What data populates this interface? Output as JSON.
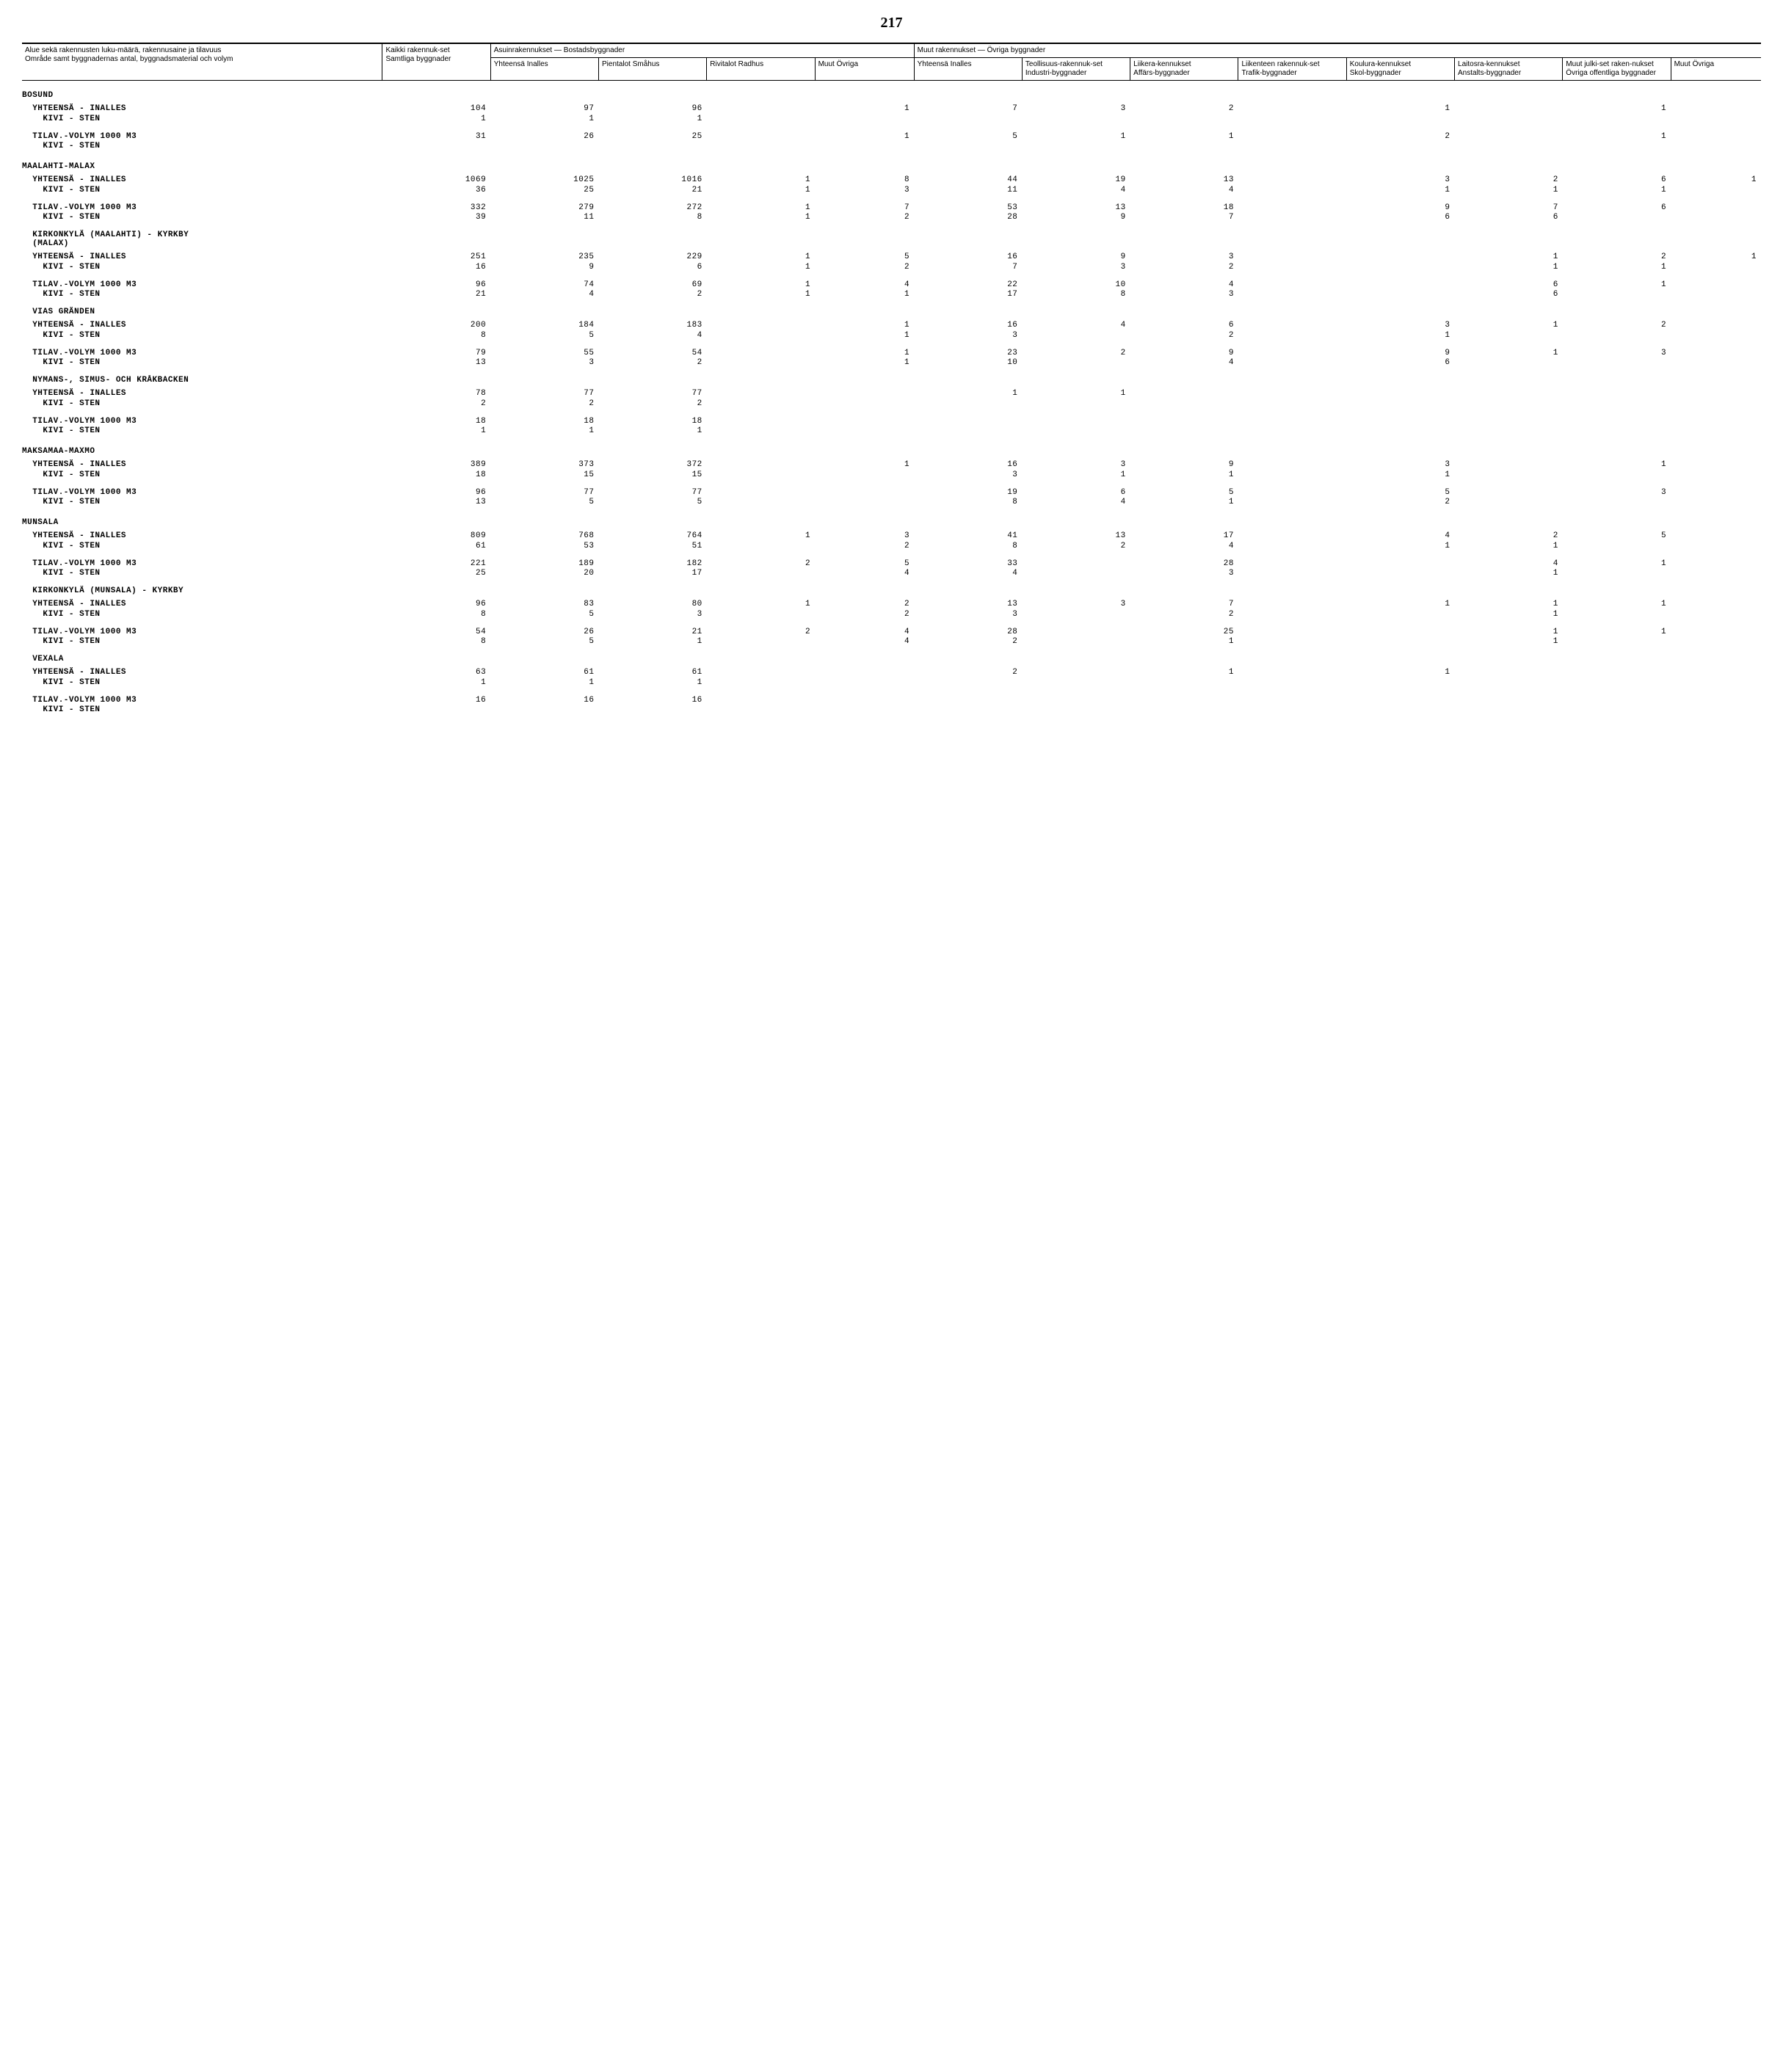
{
  "page_number": "217",
  "headers": {
    "area": "Alue sekä rakennusten luku-määrä, rakennusaine ja tilavuus\nOmråde samt byggnadernas antal, byggnadsmaterial och volym",
    "all": "Kaikki rakennuk-set\nSamtliga byggnader",
    "res_group": "Asuinrakennukset — Bostadsbyggnader",
    "res_total": "Yhteensä Inalles",
    "res_small": "Pientalot Småhus",
    "res_row": "Rivitalot Radhus",
    "res_other": "Muut Övriga",
    "oth_group": "Muut rakennukset — Övriga byggnader",
    "oth_total": "Yhteensä Inalles",
    "oth_ind": "Teollisuus-rakennuk-set\nIndustri-byggnader",
    "oth_bus": "Liikera-kennukset\nAffärs-byggnader",
    "oth_traf": "Liikenteen rakennuk-set\nTrafik-byggnader",
    "oth_sch": "Koulura-kennukset\nSkol-byggnader",
    "oth_inst": "Laitosra-kennukset\nAnstalts-byggnader",
    "oth_pub": "Muut julki-set raken-nukset\nÖvriga offentliga byggnader",
    "oth_other": "Muut Övriga"
  },
  "sections": [
    {
      "title": "BOSUND",
      "blocks": [
        {
          "rows": [
            {
              "label": "  YHTEENSÄ - INALLES",
              "v": [
                "104",
                "97",
                "96",
                "",
                "1",
                "7",
                "3",
                "2",
                "",
                "1",
                "",
                "1",
                ""
              ]
            },
            {
              "label": "    KIVI - STEN",
              "v": [
                "1",
                "1",
                "1",
                "",
                "",
                "",
                "",
                "",
                "",
                "",
                "",
                "",
                ""
              ]
            }
          ]
        },
        {
          "rows": [
            {
              "label": "  TILAV.-VOLYM 1000 M3",
              "v": [
                "31",
                "26",
                "25",
                "",
                "1",
                "5",
                "1",
                "1",
                "",
                "2",
                "",
                "1",
                ""
              ]
            },
            {
              "label": "    KIVI - STEN",
              "v": [
                "",
                "",
                "",
                "",
                "",
                "",
                "",
                "",
                "",
                "",
                "",
                "",
                ""
              ]
            }
          ]
        }
      ]
    },
    {
      "title": "MAALAHTI-MALAX",
      "blocks": [
        {
          "rows": [
            {
              "label": "  YHTEENSÄ - INALLES",
              "v": [
                "1069",
                "1025",
                "1016",
                "1",
                "8",
                "44",
                "19",
                "13",
                "",
                "3",
                "2",
                "6",
                "1"
              ]
            },
            {
              "label": "    KIVI - STEN",
              "v": [
                "36",
                "25",
                "21",
                "1",
                "3",
                "11",
                "4",
                "4",
                "",
                "1",
                "1",
                "1",
                ""
              ]
            }
          ]
        },
        {
          "rows": [
            {
              "label": "  TILAV.-VOLYM 1000 M3",
              "v": [
                "332",
                "279",
                "272",
                "1",
                "7",
                "53",
                "13",
                "18",
                "",
                "9",
                "7",
                "6",
                ""
              ]
            },
            {
              "label": "    KIVI - STEN",
              "v": [
                "39",
                "11",
                "8",
                "1",
                "2",
                "28",
                "9",
                "7",
                "",
                "6",
                "6",
                "",
                ""
              ]
            }
          ]
        }
      ],
      "subsections": [
        {
          "title": "  KIRKONKYLÄ (MAALAHTI) - KYRKBY\n  (MALAX)",
          "blocks": [
            {
              "rows": [
                {
                  "label": "  YHTEENSÄ - INALLES",
                  "v": [
                    "251",
                    "235",
                    "229",
                    "1",
                    "5",
                    "16",
                    "9",
                    "3",
                    "",
                    "",
                    "1",
                    "2",
                    "1"
                  ]
                },
                {
                  "label": "    KIVI - STEN",
                  "v": [
                    "16",
                    "9",
                    "6",
                    "1",
                    "2",
                    "7",
                    "3",
                    "2",
                    "",
                    "",
                    "1",
                    "1",
                    ""
                  ]
                }
              ]
            },
            {
              "rows": [
                {
                  "label": "  TILAV.-VOLYM 1000 M3",
                  "v": [
                    "96",
                    "74",
                    "69",
                    "1",
                    "4",
                    "22",
                    "10",
                    "4",
                    "",
                    "",
                    "6",
                    "1",
                    ""
                  ]
                },
                {
                  "label": "    KIVI - STEN",
                  "v": [
                    "21",
                    "4",
                    "2",
                    "1",
                    "1",
                    "17",
                    "8",
                    "3",
                    "",
                    "",
                    "6",
                    "",
                    ""
                  ]
                }
              ]
            }
          ]
        },
        {
          "title": "  VIAS GRÄNDEN",
          "blocks": [
            {
              "rows": [
                {
                  "label": "  YHTEENSÄ - INALLES",
                  "v": [
                    "200",
                    "184",
                    "183",
                    "",
                    "1",
                    "16",
                    "4",
                    "6",
                    "",
                    "3",
                    "1",
                    "2",
                    ""
                  ]
                },
                {
                  "label": "    KIVI - STEN",
                  "v": [
                    "8",
                    "5",
                    "4",
                    "",
                    "1",
                    "3",
                    "",
                    "2",
                    "",
                    "1",
                    "",
                    "",
                    ""
                  ]
                }
              ]
            },
            {
              "rows": [
                {
                  "label": "  TILAV.-VOLYM 1000 M3",
                  "v": [
                    "79",
                    "55",
                    "54",
                    "",
                    "1",
                    "23",
                    "2",
                    "9",
                    "",
                    "9",
                    "1",
                    "3",
                    ""
                  ]
                },
                {
                  "label": "    KIVI - STEN",
                  "v": [
                    "13",
                    "3",
                    "2",
                    "",
                    "1",
                    "10",
                    "",
                    "4",
                    "",
                    "6",
                    "",
                    "",
                    ""
                  ]
                }
              ]
            }
          ]
        },
        {
          "title": "  NYMANS-, SIMUS- OCH KRÅKBACKEN",
          "blocks": [
            {
              "rows": [
                {
                  "label": "  YHTEENSÄ - INALLES",
                  "v": [
                    "78",
                    "77",
                    "77",
                    "",
                    "",
                    "1",
                    "1",
                    "",
                    "",
                    "",
                    "",
                    "",
                    ""
                  ]
                },
                {
                  "label": "    KIVI - STEN",
                  "v": [
                    "2",
                    "2",
                    "2",
                    "",
                    "",
                    "",
                    "",
                    "",
                    "",
                    "",
                    "",
                    "",
                    ""
                  ]
                }
              ]
            },
            {
              "rows": [
                {
                  "label": "  TILAV.-VOLYM 1000 M3",
                  "v": [
                    "18",
                    "18",
                    "18",
                    "",
                    "",
                    "",
                    "",
                    "",
                    "",
                    "",
                    "",
                    "",
                    ""
                  ]
                },
                {
                  "label": "    KIVI - STEN",
                  "v": [
                    "1",
                    "1",
                    "1",
                    "",
                    "",
                    "",
                    "",
                    "",
                    "",
                    "",
                    "",
                    "",
                    ""
                  ]
                }
              ]
            }
          ]
        }
      ]
    },
    {
      "title": "MAKSAMAA-MAXMO",
      "blocks": [
        {
          "rows": [
            {
              "label": "  YHTEENSÄ - INALLES",
              "v": [
                "389",
                "373",
                "372",
                "",
                "1",
                "16",
                "3",
                "9",
                "",
                "3",
                "",
                "1",
                ""
              ]
            },
            {
              "label": "    KIVI - STEN",
              "v": [
                "18",
                "15",
                "15",
                "",
                "",
                "3",
                "1",
                "1",
                "",
                "1",
                "",
                "",
                ""
              ]
            }
          ]
        },
        {
          "rows": [
            {
              "label": "  TILAV.-VOLYM 1000 M3",
              "v": [
                "96",
                "77",
                "77",
                "",
                "",
                "19",
                "6",
                "5",
                "",
                "5",
                "",
                "3",
                ""
              ]
            },
            {
              "label": "    KIVI - STEN",
              "v": [
                "13",
                "5",
                "5",
                "",
                "",
                "8",
                "4",
                "1",
                "",
                "2",
                "",
                "",
                ""
              ]
            }
          ]
        }
      ]
    },
    {
      "title": "MUNSALA",
      "blocks": [
        {
          "rows": [
            {
              "label": "  YHTEENSÄ - INALLES",
              "v": [
                "809",
                "768",
                "764",
                "1",
                "3",
                "41",
                "13",
                "17",
                "",
                "4",
                "2",
                "5",
                ""
              ]
            },
            {
              "label": "    KIVI - STEN",
              "v": [
                "61",
                "53",
                "51",
                "",
                "2",
                "8",
                "2",
                "4",
                "",
                "1",
                "1",
                "",
                ""
              ]
            }
          ]
        },
        {
          "rows": [
            {
              "label": "  TILAV.-VOLYM 1000 M3",
              "v": [
                "221",
                "189",
                "182",
                "2",
                "5",
                "33",
                "",
                "28",
                "",
                "",
                "4",
                "1",
                ""
              ]
            },
            {
              "label": "    KIVI - STEN",
              "v": [
                "25",
                "20",
                "17",
                "",
                "4",
                "4",
                "",
                "3",
                "",
                "",
                "1",
                "",
                ""
              ]
            }
          ]
        }
      ],
      "subsections": [
        {
          "title": "  KIRKONKYLÄ (MUNSALA) - KYRKBY",
          "blocks": [
            {
              "rows": [
                {
                  "label": "  YHTEENSÄ - INALLES",
                  "v": [
                    "96",
                    "83",
                    "80",
                    "1",
                    "2",
                    "13",
                    "3",
                    "7",
                    "",
                    "1",
                    "1",
                    "1",
                    ""
                  ]
                },
                {
                  "label": "    KIVI - STEN",
                  "v": [
                    "8",
                    "5",
                    "3",
                    "",
                    "2",
                    "3",
                    "",
                    "2",
                    "",
                    "",
                    "1",
                    "",
                    ""
                  ]
                }
              ]
            },
            {
              "rows": [
                {
                  "label": "  TILAV.-VOLYM 1000 M3",
                  "v": [
                    "54",
                    "26",
                    "21",
                    "2",
                    "4",
                    "28",
                    "",
                    "25",
                    "",
                    "",
                    "1",
                    "1",
                    ""
                  ]
                },
                {
                  "label": "    KIVI - STEN",
                  "v": [
                    "8",
                    "5",
                    "1",
                    "",
                    "4",
                    "2",
                    "",
                    "1",
                    "",
                    "",
                    "1",
                    "",
                    ""
                  ]
                }
              ]
            }
          ]
        },
        {
          "title": "  VEXALA",
          "blocks": [
            {
              "rows": [
                {
                  "label": "  YHTEENSÄ - INALLES",
                  "v": [
                    "63",
                    "61",
                    "61",
                    "",
                    "",
                    "2",
                    "",
                    "1",
                    "",
                    "1",
                    "",
                    "",
                    ""
                  ]
                },
                {
                  "label": "    KIVI - STEN",
                  "v": [
                    "1",
                    "1",
                    "1",
                    "",
                    "",
                    "",
                    "",
                    "",
                    "",
                    "",
                    "",
                    "",
                    ""
                  ]
                }
              ]
            },
            {
              "rows": [
                {
                  "label": "  TILAV.-VOLYM 1000 M3",
                  "v": [
                    "16",
                    "16",
                    "16",
                    "",
                    "",
                    "",
                    "",
                    "",
                    "",
                    "",
                    "",
                    "",
                    ""
                  ]
                },
                {
                  "label": "    KIVI - STEN",
                  "v": [
                    "",
                    "",
                    "",
                    "",
                    "",
                    "",
                    "",
                    "",
                    "",
                    "",
                    "",
                    "",
                    ""
                  ]
                }
              ]
            }
          ]
        }
      ]
    }
  ]
}
